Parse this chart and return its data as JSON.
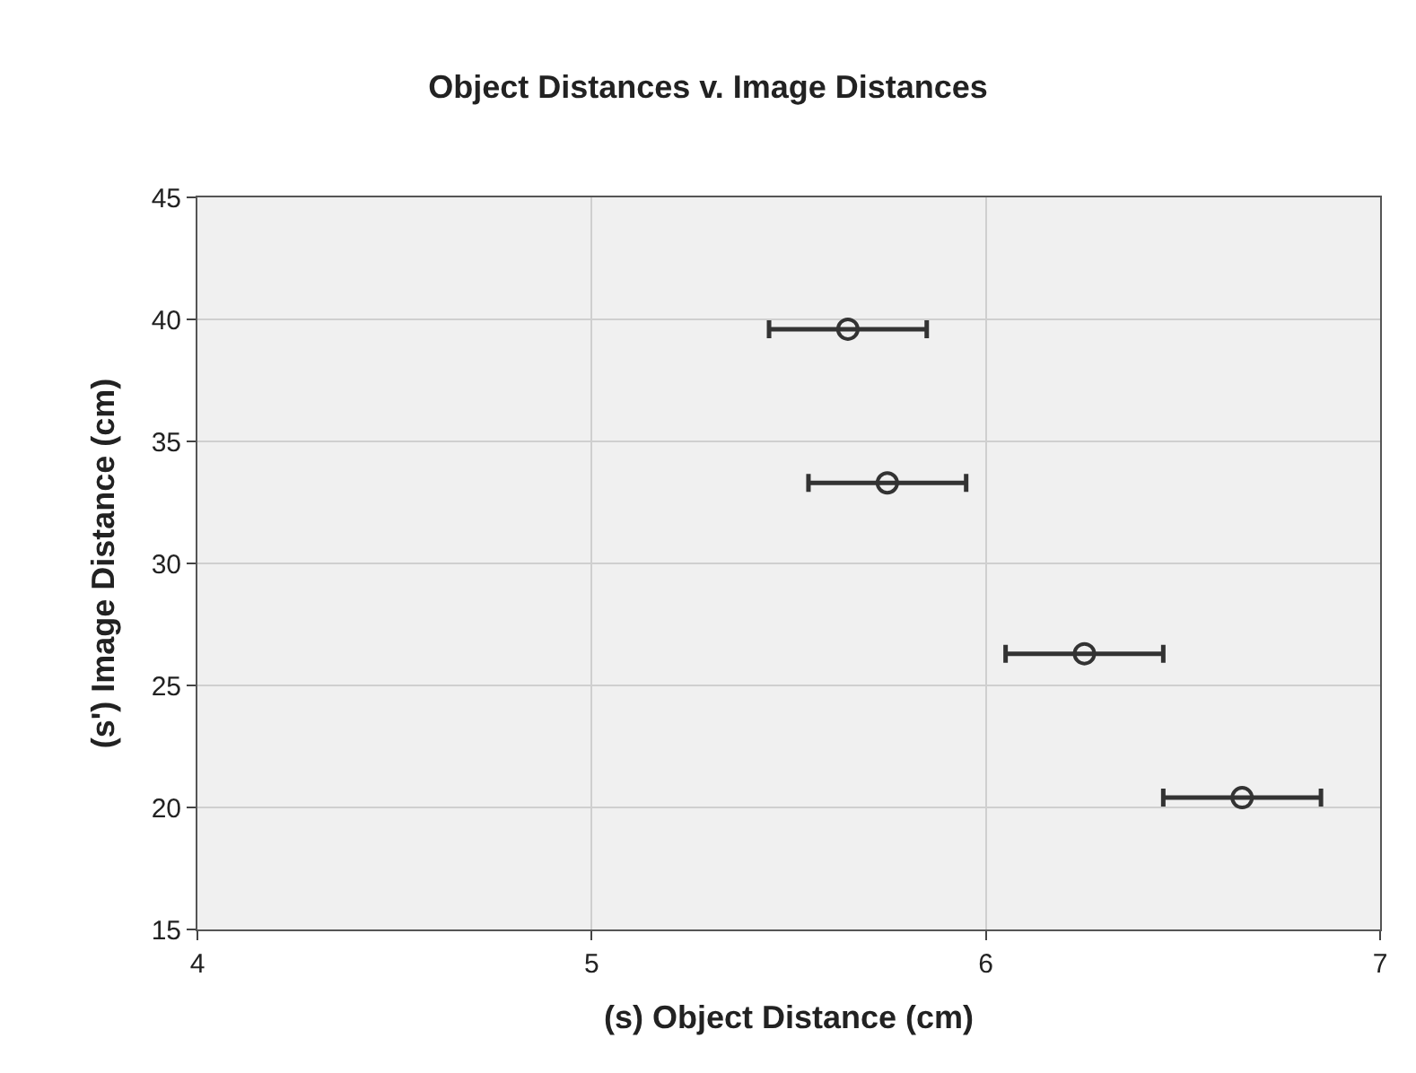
{
  "chart_data": {
    "type": "scatter",
    "title": "Object Distances v. Image Distances",
    "xlabel": "(s) Object Distance (cm)",
    "ylabel": "(s') Image Distance (cm)",
    "x": [
      5.65,
      5.75,
      6.25,
      6.65
    ],
    "series": [
      {
        "color": "#333333",
        "values": [
          39.6,
          33.3,
          26.3,
          20.4
        ],
        "xerrors": [
          0.2,
          0.2,
          0.2,
          0.2
        ]
      }
    ],
    "xlim": [
      4,
      7
    ],
    "xticks": [
      4,
      5,
      6,
      7
    ],
    "ylim": [
      15,
      45
    ],
    "yticks": [
      15,
      20,
      25,
      30,
      35,
      40,
      45
    ],
    "grid": true,
    "marker": "circle"
  }
}
